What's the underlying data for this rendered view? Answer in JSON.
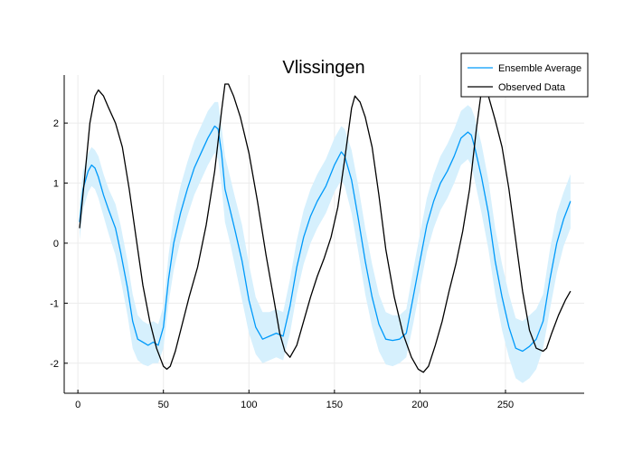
{
  "chart_data": {
    "type": "line",
    "title": "Vlissingen",
    "xlabel": "",
    "ylabel": "",
    "xlim": [
      -8,
      296
    ],
    "ylim": [
      -2.5,
      2.8
    ],
    "xticks": [
      0,
      50,
      100,
      150,
      200,
      250
    ],
    "xtick_labels": [
      "0",
      "50",
      "100",
      "150",
      "200",
      "250"
    ],
    "yticks": [
      -2,
      -1,
      0,
      1,
      2
    ],
    "ytick_labels": [
      "-2",
      "-1",
      "0",
      "1",
      "2"
    ],
    "grid": true,
    "legend_position": "top-right",
    "series": [
      {
        "name": "Ensemble Average",
        "color": "#009AFA",
        "band_color": "#D6F0FD",
        "x": [
          1,
          3,
          6,
          8,
          10,
          12,
          15,
          18,
          22,
          25,
          29,
          32,
          35,
          38,
          41,
          44,
          47,
          50,
          53,
          56,
          60,
          64,
          68,
          72,
          76,
          80,
          82,
          84,
          86,
          89,
          92,
          96,
          100,
          104,
          108,
          112,
          116,
          120,
          124,
          128,
          132,
          136,
          140,
          145,
          150,
          154,
          156,
          160,
          164,
          168,
          172,
          176,
          180,
          184,
          188,
          192,
          196,
          200,
          204,
          208,
          212,
          216,
          220,
          224,
          228,
          230,
          232,
          236,
          240,
          244,
          248,
          252,
          256,
          260,
          264,
          268,
          272,
          276,
          280,
          284,
          288
        ],
        "values": [
          0.35,
          0.9,
          1.2,
          1.3,
          1.25,
          1.1,
          0.8,
          0.55,
          0.25,
          -0.15,
          -0.75,
          -1.3,
          -1.6,
          -1.65,
          -1.7,
          -1.65,
          -1.7,
          -1.4,
          -0.6,
          0.0,
          0.5,
          0.9,
          1.25,
          1.5,
          1.75,
          1.95,
          1.9,
          1.5,
          0.9,
          0.55,
          0.2,
          -0.3,
          -0.95,
          -1.4,
          -1.6,
          -1.55,
          -1.5,
          -1.55,
          -1.05,
          -0.4,
          0.1,
          0.45,
          0.7,
          0.95,
          1.3,
          1.52,
          1.45,
          1.05,
          0.4,
          -0.3,
          -0.9,
          -1.35,
          -1.6,
          -1.62,
          -1.6,
          -1.5,
          -0.9,
          -0.3,
          0.3,
          0.7,
          1.0,
          1.2,
          1.45,
          1.75,
          1.85,
          1.8,
          1.6,
          1.1,
          0.5,
          -0.3,
          -0.9,
          -1.4,
          -1.75,
          -1.8,
          -1.72,
          -1.6,
          -1.3,
          -0.6,
          0.0,
          0.4,
          0.7
        ],
        "band_lower": [
          0.05,
          0.55,
          0.85,
          0.95,
          0.9,
          0.75,
          0.45,
          0.15,
          -0.2,
          -0.6,
          -1.2,
          -1.75,
          -1.95,
          -2.02,
          -2.05,
          -2.0,
          -2.0,
          -1.75,
          -1.0,
          -0.45,
          0.05,
          0.45,
          0.8,
          1.05,
          1.3,
          1.5,
          1.4,
          0.95,
          0.35,
          0.0,
          -0.4,
          -0.95,
          -1.5,
          -1.85,
          -2.0,
          -1.95,
          -1.9,
          -1.95,
          -1.5,
          -0.85,
          -0.35,
          0.0,
          0.25,
          0.5,
          0.85,
          1.05,
          0.95,
          0.5,
          -0.15,
          -0.85,
          -1.4,
          -1.8,
          -2.02,
          -2.05,
          -2.0,
          -1.9,
          -1.35,
          -0.75,
          -0.15,
          0.25,
          0.55,
          0.75,
          1.0,
          1.3,
          1.4,
          1.3,
          1.05,
          0.5,
          -0.1,
          -0.85,
          -1.45,
          -1.9,
          -2.25,
          -2.33,
          -2.25,
          -2.1,
          -1.75,
          -1.1,
          -0.5,
          -0.05,
          0.25
        ],
        "band_upper": [
          0.65,
          1.2,
          1.5,
          1.6,
          1.55,
          1.45,
          1.15,
          0.9,
          0.65,
          0.3,
          -0.3,
          -0.85,
          -1.2,
          -1.3,
          -1.35,
          -1.3,
          -1.35,
          -1.05,
          -0.2,
          0.45,
          0.95,
          1.35,
          1.7,
          1.95,
          2.2,
          2.35,
          2.35,
          1.95,
          1.45,
          1.1,
          0.75,
          0.3,
          -0.35,
          -0.9,
          -1.15,
          -1.15,
          -1.1,
          -1.15,
          -0.6,
          0.05,
          0.55,
          0.9,
          1.15,
          1.4,
          1.75,
          1.95,
          1.9,
          1.55,
          0.95,
          0.25,
          -0.35,
          -0.85,
          -1.15,
          -1.2,
          -1.2,
          -1.1,
          -0.45,
          0.15,
          0.75,
          1.15,
          1.45,
          1.65,
          1.9,
          2.2,
          2.3,
          2.25,
          2.1,
          1.65,
          1.05,
          0.25,
          -0.35,
          -0.85,
          -1.25,
          -1.3,
          -1.2,
          -1.1,
          -0.85,
          -0.1,
          0.5,
          0.85,
          1.15
        ]
      },
      {
        "name": "Observed Data",
        "color": "#000000",
        "x": [
          1,
          4,
          7,
          10,
          12,
          15,
          18,
          22,
          26,
          30,
          34,
          38,
          42,
          46,
          50,
          52,
          54,
          57,
          61,
          65,
          70,
          75,
          80,
          84,
          86,
          88,
          91,
          95,
          100,
          105,
          110,
          115,
          118,
          121,
          124,
          128,
          132,
          136,
          140,
          144,
          148,
          152,
          156,
          160,
          162,
          165,
          168,
          172,
          176,
          180,
          185,
          190,
          195,
          199,
          202,
          205,
          209,
          213,
          217,
          221,
          225,
          229,
          233,
          236,
          240,
          244,
          248,
          252,
          256,
          260,
          264,
          268,
          272,
          274,
          277,
          281,
          285,
          288
        ],
        "values": [
          0.25,
          1.1,
          2.0,
          2.45,
          2.55,
          2.45,
          2.25,
          2.0,
          1.6,
          0.9,
          0.1,
          -0.7,
          -1.3,
          -1.75,
          -2.05,
          -2.1,
          -2.05,
          -1.8,
          -1.35,
          -0.9,
          -0.4,
          0.3,
          1.2,
          2.2,
          2.65,
          2.65,
          2.45,
          2.1,
          1.5,
          0.7,
          -0.2,
          -1.0,
          -1.5,
          -1.8,
          -1.9,
          -1.7,
          -1.3,
          -0.9,
          -0.55,
          -0.25,
          0.1,
          0.6,
          1.4,
          2.25,
          2.45,
          2.35,
          2.1,
          1.6,
          0.8,
          -0.1,
          -0.9,
          -1.5,
          -1.9,
          -2.1,
          -2.15,
          -2.05,
          -1.7,
          -1.3,
          -0.8,
          -0.35,
          0.2,
          0.9,
          1.9,
          2.55,
          2.45,
          2.05,
          1.6,
          0.9,
          0.05,
          -0.8,
          -1.45,
          -1.75,
          -1.8,
          -1.75,
          -1.5,
          -1.2,
          -0.95,
          -0.8
        ]
      }
    ]
  }
}
